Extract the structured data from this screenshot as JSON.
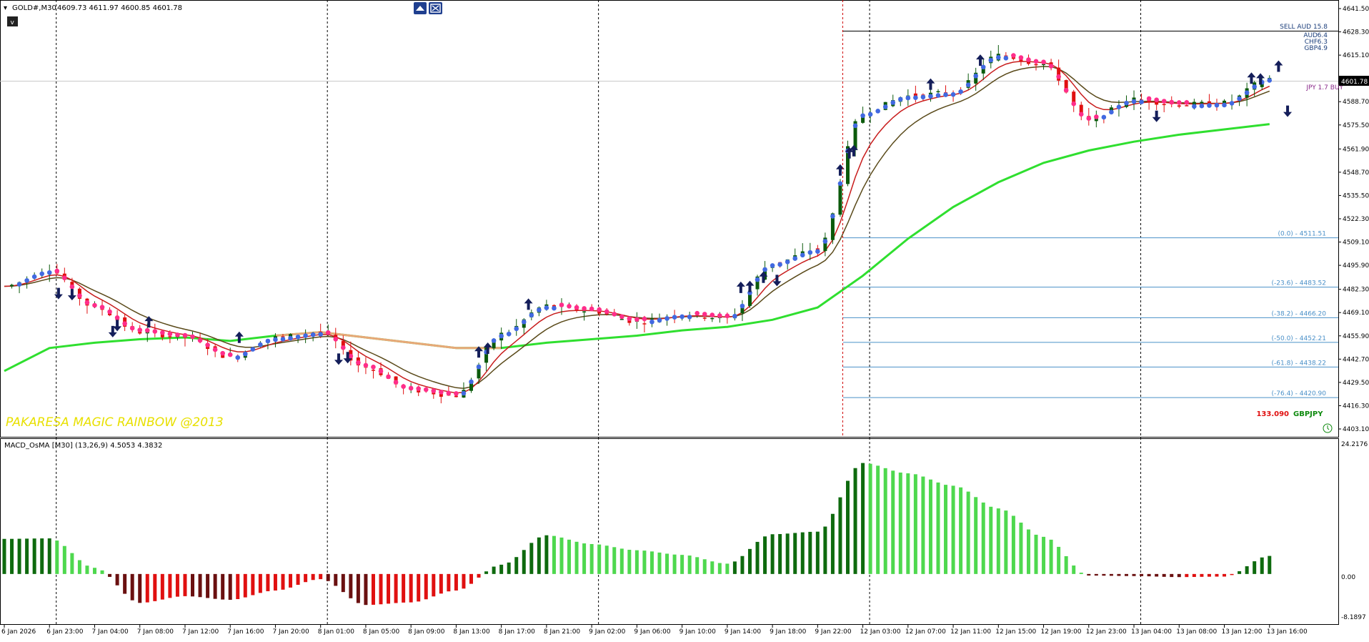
{
  "header": {
    "symbol_title": "GOLD#,M30",
    "ohlc": "4609.73 4611.97 4600.85 4601.78",
    "collapse_label": "v"
  },
  "watermark": "PAKARESA MAGIC RAINBOW @2013",
  "price_axis": {
    "ticks": [
      "4641.50",
      "4628.30",
      "4615.10",
      "4588.70",
      "4575.50",
      "4561.90",
      "4548.70",
      "4535.50",
      "4522.30",
      "4509.10",
      "4495.90",
      "4482.30",
      "4469.10",
      "4455.90",
      "4442.70",
      "4429.50",
      "4416.30",
      "4403.10"
    ],
    "current_price": "4601.78"
  },
  "time_axis": [
    "6 Jan 2026",
    "6 Jan 23:00",
    "7 Jan 04:00",
    "7 Jan 08:00",
    "7 Jan 12:00",
    "7 Jan 16:00",
    "7 Jan 20:00",
    "8 Jan 01:00",
    "8 Jan 05:00",
    "8 Jan 09:00",
    "8 Jan 13:00",
    "8 Jan 17:00",
    "8 Jan 21:00",
    "9 Jan 02:00",
    "9 Jan 06:00",
    "9 Jan 10:00",
    "9 Jan 14:00",
    "9 Jan 18:00",
    "9 Jan 22:00",
    "12 Jan 03:00",
    "12 Jan 07:00",
    "12 Jan 11:00",
    "12 Jan 15:00",
    "12 Jan 19:00",
    "12 Jan 23:00",
    "13 Jan 04:00",
    "13 Jan 08:00",
    "13 Jan 12:00",
    "13 Jan 16:00"
  ],
  "fibo": {
    "levels": [
      "(0.0) - 4511.51",
      "(-23.6) - 4483.52",
      "(-38.2) - 4466.20",
      "(-50.0) - 4452.21",
      "(-61.8) - 4438.22",
      "(-76.4) - 4420.90"
    ],
    "ratios": [
      0.0,
      -23.6,
      -38.2,
      -50.0,
      -61.8,
      -76.4
    ],
    "prices": [
      4511.51,
      4483.52,
      4466.2,
      4452.21,
      4438.22,
      4420.9
    ],
    "color": "#4a90c8"
  },
  "currency_strength": [
    {
      "label": "AUD",
      "value": "6.4"
    },
    {
      "label": "CHF",
      "value": "6.3"
    },
    {
      "label": "GBP",
      "value": "4.9"
    }
  ],
  "strength_header": "SELL AUD 15.8",
  "pair_panel": {
    "price": "133.090",
    "pair": "GBPJPY",
    "buy_text": "JPY 1.7 BUY"
  },
  "macd": {
    "title": "MACD_OsMA [M30] (13,26,9) 4.5053 4.3832",
    "axis_max": "24.2176",
    "axis_zero": "0.00",
    "axis_min": "-8.1897"
  },
  "colors": {
    "bull_candle": "#0b5a0b",
    "bear_candle": "#e01010",
    "ema_fast": "#c81c1c",
    "ema_slow": "#5a4a1a",
    "ma_long": "#2fdf2f",
    "ma_long_faded": "#e8a878",
    "dot_blue": "#4169e1",
    "dot_pink": "#ff2d8a",
    "arrow": "#141e5a",
    "hist_dark_green": "#0e6a0e",
    "hist_light_green": "#4ed84e",
    "hist_dark_red": "#6a1010",
    "hist_red": "#e01010",
    "watermark": "#e8e000"
  },
  "chart_data": {
    "type": "line",
    "title": "GOLD#,M30",
    "x": [
      "6 Jan 2026",
      "6 Jan 23:00",
      "7 Jan 04:00",
      "7 Jan 08:00",
      "7 Jan 12:00",
      "7 Jan 16:00",
      "7 Jan 20:00",
      "8 Jan 01:00",
      "8 Jan 05:00",
      "8 Jan 09:00",
      "8 Jan 13:00",
      "8 Jan 17:00",
      "8 Jan 21:00",
      "9 Jan 02:00",
      "9 Jan 06:00",
      "9 Jan 10:00",
      "9 Jan 14:00",
      "9 Jan 18:00",
      "9 Jan 22:00",
      "12 Jan 03:00",
      "12 Jan 07:00",
      "12 Jan 11:00",
      "12 Jan 15:00",
      "12 Jan 19:00",
      "12 Jan 23:00",
      "13 Jan 04:00",
      "13 Jan 08:00",
      "13 Jan 12:00",
      "13 Jan 16:00"
    ],
    "price": [
      4484,
      4493,
      4472,
      4458,
      4455,
      4444,
      4455,
      4458,
      4438,
      4425,
      4422,
      4457,
      4473,
      4470,
      4464,
      4468,
      4466,
      4497,
      4505,
      4582,
      4592,
      4594,
      4615,
      4610,
      4578,
      4590,
      4587,
      4588,
      4602
    ],
    "ma_long": [
      4436,
      4449,
      4452,
      4454,
      4455,
      4453,
      4456,
      4458,
      4455,
      4452,
      4449,
      4449,
      4452,
      4454,
      4456,
      4459,
      4461,
      4465,
      4472,
      4490,
      4511,
      4529,
      4543,
      4554,
      4561,
      4566,
      4570,
      4573,
      4576
    ],
    "macd_hist": [
      6.8,
      6.9,
      1.2,
      -5.6,
      -4.3,
      -5.0,
      -3.2,
      -1.0,
      -6.0,
      -5.5,
      -3.2,
      1.8,
      7.5,
      5.8,
      4.6,
      3.7,
      2.0,
      7.7,
      8.2,
      21.5,
      19.5,
      17.1,
      12.7,
      7.2,
      -0.3,
      -0.4,
      -0.6,
      -0.5,
      3.5
    ],
    "ylim": [
      4403.1,
      4641.5
    ]
  }
}
